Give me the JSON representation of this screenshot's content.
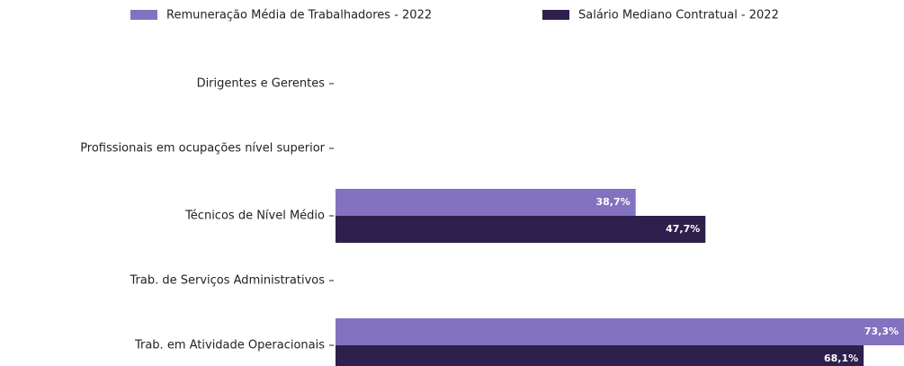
{
  "chart_data": {
    "type": "hbar",
    "categories": [
      "Dirigentes e Gerentes",
      "Profissionais em ocupações nível superior",
      "Técnicos de Nível Médio",
      "Trab. de Serviços Administrativos",
      "Trab. em Atividade Operacionais"
    ],
    "series": [
      {
        "name": "Remuneração Média de Trabalhadores - 2022",
        "color": "#8272c0",
        "values": [
          null,
          null,
          38.7,
          null,
          73.3
        ],
        "value_labels": [
          null,
          null,
          "38,7%",
          null,
          "73,3%"
        ]
      },
      {
        "name": "Salário Mediano Contratual - 2022",
        "color": "#2e1f4c",
        "values": [
          null,
          null,
          47.7,
          null,
          68.1
        ],
        "value_labels": [
          null,
          null,
          "47,7%",
          null,
          "68,1%"
        ]
      }
    ],
    "xlim": [
      0,
      73.3
    ],
    "legend": "top"
  }
}
